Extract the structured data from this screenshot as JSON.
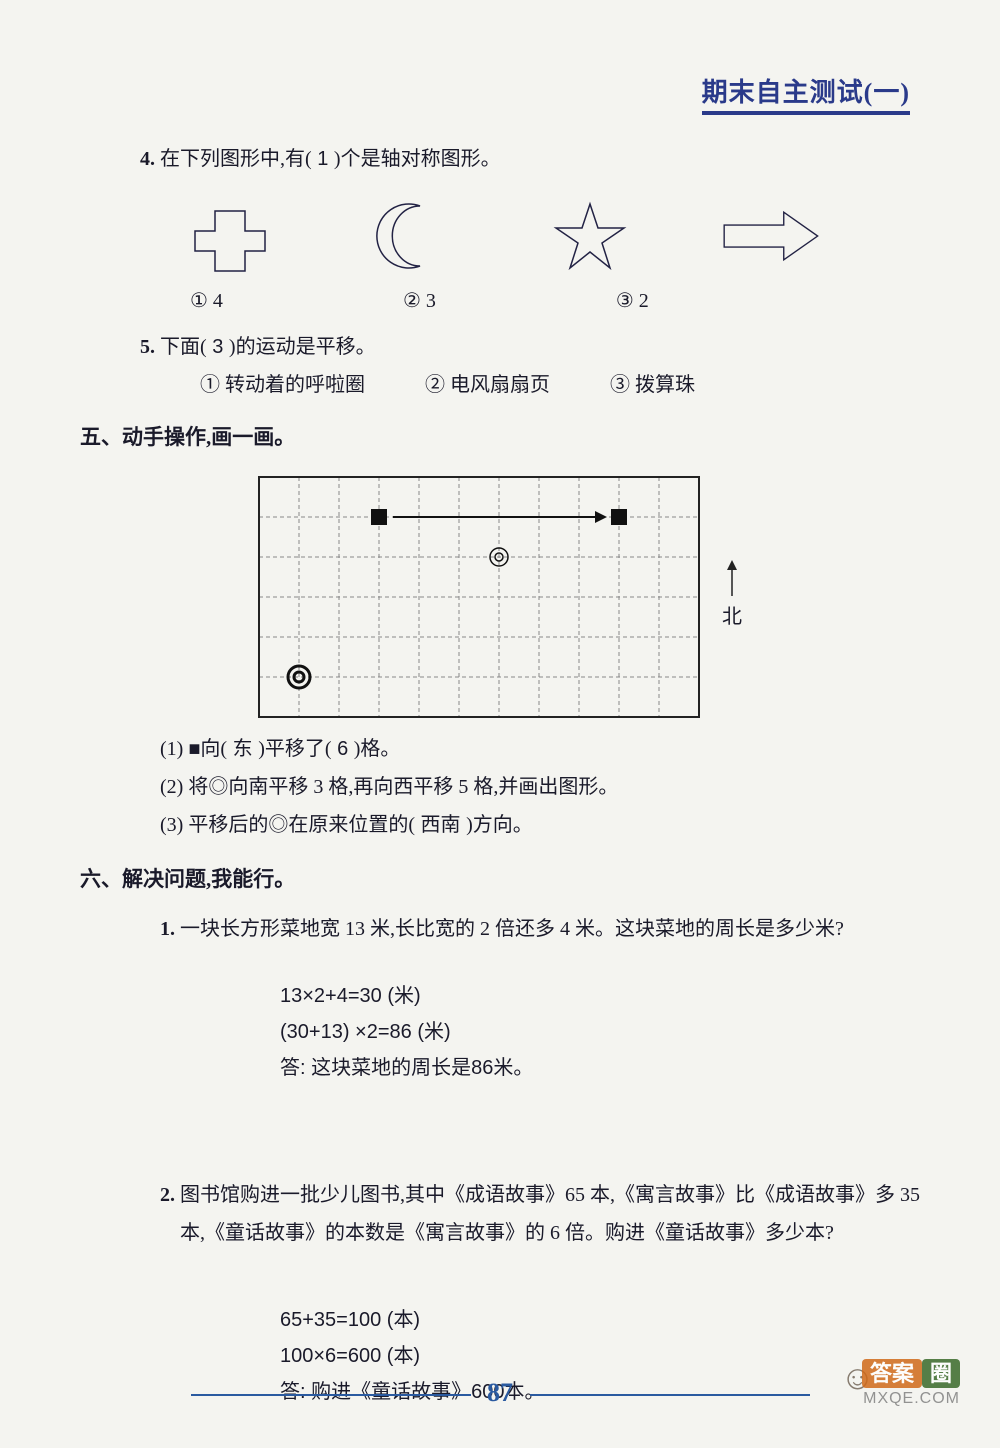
{
  "header": {
    "title": "期末自主测试(一)"
  },
  "q4": {
    "num": "4.",
    "text_before": "在下列图形中,有(",
    "answer": " 1 ",
    "text_after": ")个是轴对称图形。",
    "shapes": {
      "stroke": "#222244",
      "stroke_width": 1.5
    },
    "options": {
      "a": "① 4",
      "b": "② 3",
      "c": "③ 2"
    }
  },
  "q5": {
    "num": "5.",
    "text_before": "下面(",
    "answer": " 3 ",
    "text_after": ")的运动是平移。",
    "options": {
      "a": "① 转动着的呼啦圈",
      "b": "② 电风扇扇页",
      "c": "③ 拨算珠"
    }
  },
  "sec5": {
    "title": "五、动手操作,画一画。",
    "grid": {
      "cols": 11,
      "rows": 6,
      "cell": 40,
      "border_color": "#222",
      "dash_color": "#888",
      "square1": {
        "col": 3,
        "row": 1
      },
      "square2": {
        "col": 9,
        "row": 1
      },
      "arrow": {
        "from_col": 3,
        "to_col": 9,
        "row": 1
      },
      "circle1": {
        "col": 6,
        "row": 2
      },
      "circle2": {
        "col": 1,
        "row": 5
      }
    },
    "north_label": "北",
    "sub1_before": "(1) ■向(",
    "sub1_a1": " 东 ",
    "sub1_mid": ")平移了(",
    "sub1_a2": " 6 ",
    "sub1_after": ")格。",
    "sub2": "(2) 将◎向南平移 3 格,再向西平移 5 格,并画出图形。",
    "sub3_before": "(3) 平移后的◎在原来位置的(",
    "sub3_ans": " 西南 ",
    "sub3_after": ")方向。"
  },
  "sec6": {
    "title": "六、解决问题,我能行。",
    "q1": {
      "num": "1.",
      "text": "一块长方形菜地宽 13 米,长比宽的 2 倍还多 4 米。这块菜地的周长是多少米?",
      "calc1": "13×2+4=30 (米)",
      "calc2": " (30+13) ×2=86 (米)",
      "ans": "答: 这块菜地的周长是86米。"
    },
    "q2": {
      "num": "2.",
      "text_l1": "图书馆购进一批少儿图书,其中《成语故事》65 本,《寓言故事》比《成语故事》多 35",
      "text_l2": "本,《童话故事》的本数是《寓言故事》的 6 倍。购进《童话故事》多少本?",
      "calc1": "65+35=100 (本)",
      "calc2": "100×6=600 (本)",
      "ans": "答: 购进《童话故事》600本。"
    }
  },
  "footer": {
    "page": "87"
  },
  "watermark": {
    "a": "答案",
    "b": "圈",
    "url": "MXQE.COM"
  }
}
